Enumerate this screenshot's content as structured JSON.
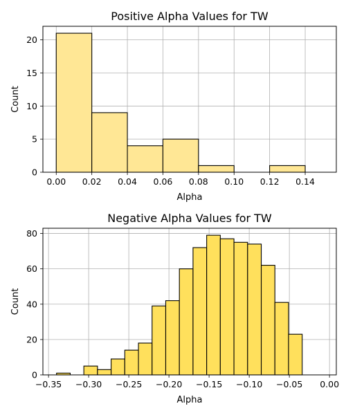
{
  "chart_data": [
    {
      "type": "bar",
      "title": "Positive Alpha Values for TW",
      "xlabel": "Alpha",
      "ylabel": "Count",
      "xlim": [
        -0.0075,
        0.1575
      ],
      "ylim": [
        0,
        22.05
      ],
      "xticks": [
        0.0,
        0.02,
        0.04,
        0.06,
        0.08,
        0.1,
        0.12,
        0.14
      ],
      "xtick_labels": [
        "0.00",
        "0.02",
        "0.04",
        "0.06",
        "0.08",
        "0.10",
        "0.12",
        "0.14"
      ],
      "yticks": [
        0,
        5,
        10,
        15,
        20
      ],
      "ytick_labels": [
        "0",
        "5",
        "10",
        "15",
        "20"
      ],
      "grid": true,
      "bar_color": "#ffe795",
      "edge_color": "#000000",
      "bins": [
        {
          "x0": 0.0,
          "x1": 0.02,
          "count": 21
        },
        {
          "x0": 0.02,
          "x1": 0.04,
          "count": 9
        },
        {
          "x0": 0.04,
          "x1": 0.06,
          "count": 4
        },
        {
          "x0": 0.06,
          "x1": 0.08,
          "count": 5
        },
        {
          "x0": 0.08,
          "x1": 0.1,
          "count": 1
        },
        {
          "x0": 0.1,
          "x1": 0.12,
          "count": 0
        },
        {
          "x0": 0.12,
          "x1": 0.14,
          "count": 1
        }
      ]
    },
    {
      "type": "bar",
      "title": "Negative Alpha Values for TW",
      "xlabel": "Alpha",
      "ylabel": "Count",
      "xlim": [
        -0.357,
        0.0085
      ],
      "ylim": [
        0,
        82.95
      ],
      "xticks": [
        -0.35,
        -0.3,
        -0.25,
        -0.2,
        -0.15,
        -0.1,
        -0.05,
        0.0
      ],
      "xtick_labels": [
        "−0.35",
        "−0.30",
        "−0.25",
        "−0.20",
        "−0.15",
        "−0.10",
        "−0.05",
        "0.00"
      ],
      "yticks": [
        0,
        20,
        40,
        60,
        80
      ],
      "ytick_labels": [
        "0",
        "20",
        "40",
        "60",
        "80"
      ],
      "grid": true,
      "bar_color": "#ffe05c",
      "edge_color": "#000000",
      "bins": [
        {
          "x0": -0.34,
          "x1": -0.323,
          "count": 1
        },
        {
          "x0": -0.323,
          "x1": -0.306,
          "count": 0
        },
        {
          "x0": -0.306,
          "x1": -0.289,
          "count": 5
        },
        {
          "x0": -0.289,
          "x1": -0.272,
          "count": 3
        },
        {
          "x0": -0.272,
          "x1": -0.255,
          "count": 9
        },
        {
          "x0": -0.255,
          "x1": -0.238,
          "count": 14
        },
        {
          "x0": -0.238,
          "x1": -0.221,
          "count": 18
        },
        {
          "x0": -0.221,
          "x1": -0.204,
          "count": 39
        },
        {
          "x0": -0.204,
          "x1": -0.187,
          "count": 42
        },
        {
          "x0": -0.187,
          "x1": -0.17,
          "count": 60
        },
        {
          "x0": -0.17,
          "x1": -0.153,
          "count": 72
        },
        {
          "x0": -0.153,
          "x1": -0.136,
          "count": 79
        },
        {
          "x0": -0.136,
          "x1": -0.119,
          "count": 77
        },
        {
          "x0": -0.119,
          "x1": -0.102,
          "count": 75
        },
        {
          "x0": -0.102,
          "x1": -0.085,
          "count": 74
        },
        {
          "x0": -0.085,
          "x1": -0.068,
          "count": 62
        },
        {
          "x0": -0.068,
          "x1": -0.051,
          "count": 41
        },
        {
          "x0": -0.051,
          "x1": -0.034,
          "count": 23
        }
      ]
    }
  ]
}
